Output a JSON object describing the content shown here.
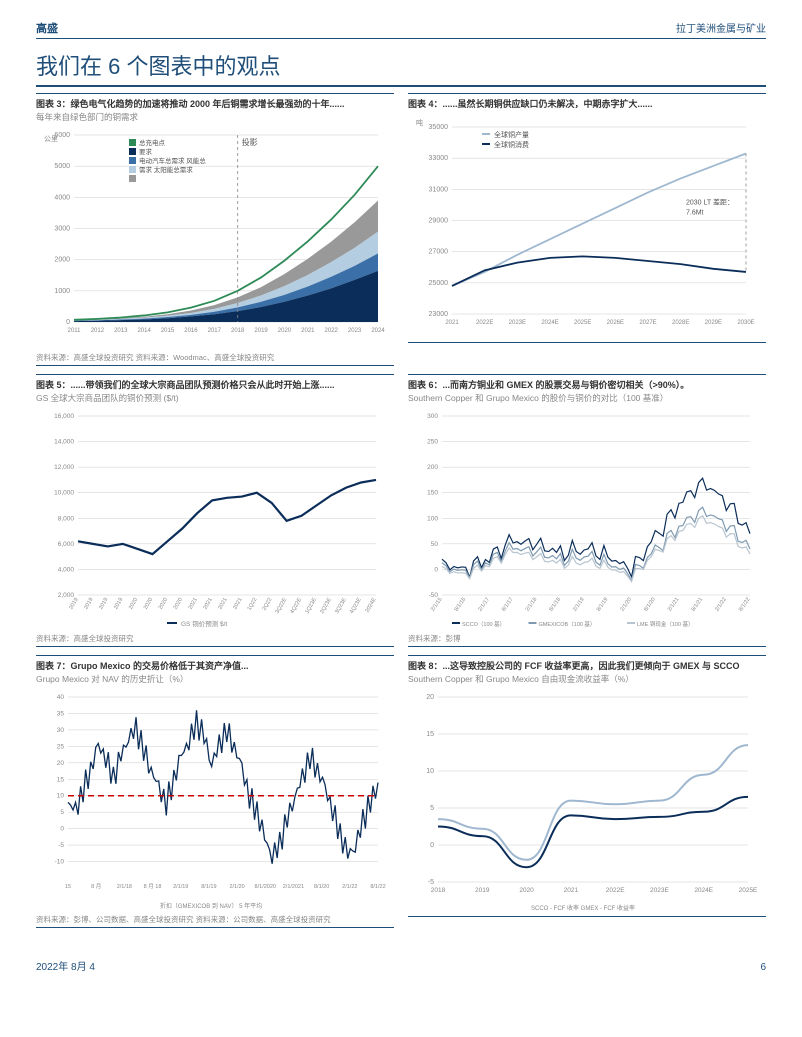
{
  "header": {
    "left": "高盛",
    "right": "拉丁美洲金属与矿业"
  },
  "main_title": "我们在 6 个图表中的观点",
  "footer": {
    "date": "2022年 8月 4",
    "page": "6"
  },
  "chart3": {
    "title": "图表 3：绿色电气化趋势的加速将推动 2000 年后铜需求增长最强劲的十年......",
    "subtitle": "每年来自绿色部门的铜需求",
    "source": "资料来源：高盛全球投资研究 资料来源：Woodmac、高盛全球投资研究",
    "type": "area",
    "y_unit": "公里",
    "ylim": [
      0,
      6000
    ],
    "ytick_step": 1000,
    "x_labels": [
      "2011",
      "2012",
      "2013",
      "2014",
      "2015",
      "2016",
      "2017",
      "2018",
      "2019",
      "2020",
      "2021",
      "2022",
      "2023",
      "2024"
    ],
    "legend": [
      "总充电点",
      "要求",
      "电动汽车总需求 风能总",
      "需求 太阳能总需求",
      ""
    ],
    "projection_label": "投影",
    "projection_x_index": 7,
    "series": {
      "solar": {
        "color": "#0b2d59",
        "values": [
          30,
          40,
          60,
          80,
          120,
          180,
          250,
          350,
          480,
          650,
          850,
          1080,
          1350,
          1640
        ]
      },
      "wind": {
        "color": "#3a6fa8",
        "values": [
          40,
          55,
          80,
          110,
          160,
          230,
          330,
          470,
          650,
          870,
          1140,
          1450,
          1800,
          2200
        ]
      },
      "ev": {
        "color": "#b5cde0",
        "values": [
          50,
          70,
          100,
          140,
          200,
          290,
          420,
          610,
          850,
          1150,
          1510,
          1920,
          2380,
          2900
        ]
      },
      "charge": {
        "color": "#999999",
        "values": [
          60,
          85,
          120,
          170,
          250,
          370,
          540,
          790,
          1120,
          1540,
          2030,
          2580,
          3200,
          3900
        ]
      },
      "total_line": {
        "color": "#2e8b57",
        "values": [
          70,
          100,
          145,
          210,
          310,
          460,
          680,
          1000,
          1430,
          1970,
          2590,
          3290,
          4080,
          5000
        ]
      }
    },
    "axis_color": "#cccccc",
    "label_fontsize": 7
  },
  "chart4": {
    "title": "图表 4：......虽然长期铜供应缺口仍未解决，中期赤字扩大......",
    "subtitle": "",
    "source": "",
    "type": "line",
    "y_unit": "吨",
    "ylim": [
      23000,
      35000
    ],
    "ytick_step": 2000,
    "x_labels": [
      "2021",
      "2022E",
      "2023E",
      "2024E",
      "2025E",
      "2026E",
      "2027E",
      "2028E",
      "2029E",
      "2030E"
    ],
    "legend": [
      "全球铜产量",
      "全球铜消费"
    ],
    "annotation": "2030 LT 差距：7.6Mt",
    "series": {
      "production": {
        "color": "#9fb8d0",
        "values": [
          24800,
          25700,
          26800,
          27800,
          28800,
          29800,
          30800,
          31700,
          32500,
          33300
        ]
      },
      "consumption": {
        "color": "#0b2d59",
        "values": [
          24800,
          25800,
          26300,
          26600,
          26700,
          26600,
          26400,
          26200,
          25900,
          25700
        ]
      }
    },
    "axis_color": "#cccccc",
    "label_fontsize": 7
  },
  "chart5": {
    "title": "图表 5：......带领我们的全球大宗商品团队预测价格只会从此时开始上涨......",
    "subtitle": "GS 全球大宗商品团队的铜价预测 ($/t)",
    "source": "资料来源：高盛全球投资研究",
    "type": "line",
    "ylim": [
      2000,
      16000
    ],
    "ytick_step": 2000,
    "x_labels": [
      "2019",
      "2019",
      "2019",
      "2019",
      "2020",
      "2020",
      "2020",
      "2020",
      "2021",
      "2021",
      "2021",
      "2021",
      "1Q22",
      "2Q22",
      "3Q22E",
      "4Q22E",
      "1Q23E",
      "2Q23E",
      "3Q23E",
      "4Q23E",
      "2024E"
    ],
    "legend_bottom": "GS 铜价预测 $/t",
    "series": {
      "forecast": {
        "color": "#0b2d59",
        "width": 2.2,
        "values": [
          6200,
          6000,
          5800,
          6000,
          5600,
          5200,
          6200,
          7200,
          8400,
          9400,
          9600,
          9700,
          10000,
          9200,
          7800,
          8200,
          9000,
          9800,
          10400,
          10800,
          11000
        ]
      }
    },
    "axis_color": "#cccccc",
    "label_fontsize": 6.5
  },
  "chart6": {
    "title": "图表 6：...而南方铜业和 GMEX 的股票交易与铜价密切相关（>90%）。",
    "subtitle": "Southern Copper 和 Grupo Mexico 的股价与铜价的对比（100 基准）",
    "source": "资料来源：彭博",
    "type": "line",
    "ylim": [
      -50,
      300
    ],
    "ytick_step": 50,
    "x_labels": [
      "2/1/15",
      "8/1/16",
      "2/1/17",
      "8/1/17",
      "2/1/18",
      "8/1/18",
      "2/1/19",
      "8/1/19",
      "2/1/20",
      "8/1/20",
      "2/1/21",
      "8/1/21",
      "2/1/22",
      "8/1/22"
    ],
    "legend": [
      "SCCO（100 基）",
      "GMEXICOB（100 基）",
      "LME 铜现金（100 基）"
    ],
    "series": {
      "scco": {
        "color": "#0b2d59",
        "values": [
          10,
          0,
          25,
          55,
          50,
          30,
          45,
          25,
          0,
          60,
          130,
          170,
          135,
          70
        ]
      },
      "gmex": {
        "color": "#7f9ab0",
        "values": [
          5,
          -5,
          18,
          42,
          35,
          18,
          30,
          12,
          -10,
          35,
          85,
          115,
          90,
          40
        ]
      },
      "lme": {
        "color": "#b8c5d0",
        "values": [
          0,
          -10,
          12,
          35,
          25,
          10,
          18,
          5,
          -15,
          30,
          75,
          100,
          75,
          30
        ]
      }
    },
    "noise": 20,
    "axis_color": "#cccccc",
    "label_fontsize": 6.5
  },
  "chart7": {
    "title": "图表 7：Grupo Mexico 的交易价格低于其资产净值...",
    "subtitle": "Grupo Mexico 对 NAV 的历史折让（%）",
    "source": "资料来源：彭博、公司数据、高盛全球投资研究 资料来源：公司数据、高盛全球投资研究",
    "type": "line",
    "ylim": [
      -15,
      40
    ],
    "yticks": [
      -10,
      -5,
      0,
      5,
      10,
      15,
      20,
      25,
      30,
      35,
      40
    ],
    "x_labels": [
      "15",
      "8 月",
      "2/1/18",
      "8 月 18",
      "2/1/19",
      "8/1/19",
      "2/1/20",
      "8/1/2020",
      "2/1/2021",
      "8/1/20",
      "2/1/22",
      "8/1/22"
    ],
    "legend": "折扣（GMEXICOB 到 NAV） 5 年平均",
    "avg_line": {
      "color": "#cc0000",
      "value": 10,
      "dash": "6,4"
    },
    "series": {
      "discount": {
        "color": "#0b2d59",
        "values": [
          8,
          5,
          12,
          18,
          25,
          22,
          15,
          22,
          28,
          30,
          24,
          18,
          12,
          8,
          15,
          22,
          27,
          32,
          28,
          20,
          25,
          30,
          25,
          18,
          10,
          5,
          -3,
          -8,
          -5,
          3,
          10,
          15,
          22,
          18,
          12,
          6,
          -2,
          -8,
          -5,
          2,
          8,
          14
        ]
      }
    },
    "noise": 4,
    "axis_color": "#cccccc",
    "label_fontsize": 6.5
  },
  "chart8": {
    "title": "图表 8：...这导致控股公司的 FCF 收益率更高，因此我们更倾向于 GMEX 与 SCCO",
    "subtitle": "Southern Copper 和 Grupo Mexico 自由现金流收益率（%）",
    "source": "",
    "type": "line",
    "ylim": [
      -5,
      20
    ],
    "ytick_step": 5,
    "x_labels": [
      "2018",
      "2019",
      "2020",
      "2021",
      "2022E",
      "2023E",
      "2024E",
      "2025E"
    ],
    "legend": "SCCO - FCF 收率  GMEX - FCF 收益率",
    "series": {
      "gmex": {
        "color": "#9fb8d0",
        "values": [
          3.5,
          2.2,
          -2.0,
          6.0,
          5.5,
          6.0,
          9.5,
          13.5
        ]
      },
      "scco": {
        "color": "#0b2d59",
        "values": [
          2.5,
          1.2,
          -3.0,
          4.0,
          3.5,
          3.8,
          4.5,
          6.5
        ]
      }
    },
    "axis_color": "#cccccc",
    "label_fontsize": 7
  }
}
